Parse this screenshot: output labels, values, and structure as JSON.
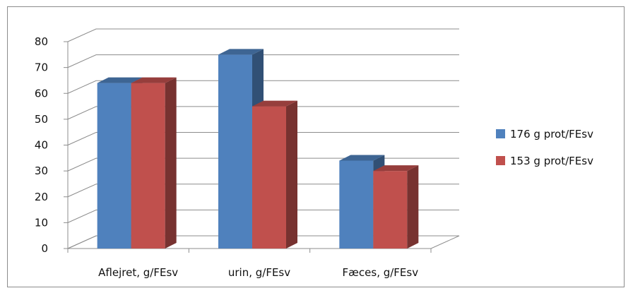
{
  "chart_data": {
    "type": "bar",
    "style": "3d-clustered-column",
    "categories": [
      "Aflejret, g/FEsv",
      "urin, g/FEsv",
      "Fæces, g/FEsv"
    ],
    "series": [
      {
        "name": "176 g prot/FEsv",
        "values": [
          64,
          75,
          34
        ],
        "color": "#4f81bd"
      },
      {
        "name": "153 g prot/FEsv",
        "values": [
          64,
          55,
          30
        ],
        "color": "#c0504d"
      }
    ],
    "ylim": [
      0,
      80
    ],
    "yticks": [
      0,
      10,
      20,
      30,
      40,
      50,
      60,
      70,
      80
    ],
    "grid": true,
    "legend_position": "right"
  }
}
